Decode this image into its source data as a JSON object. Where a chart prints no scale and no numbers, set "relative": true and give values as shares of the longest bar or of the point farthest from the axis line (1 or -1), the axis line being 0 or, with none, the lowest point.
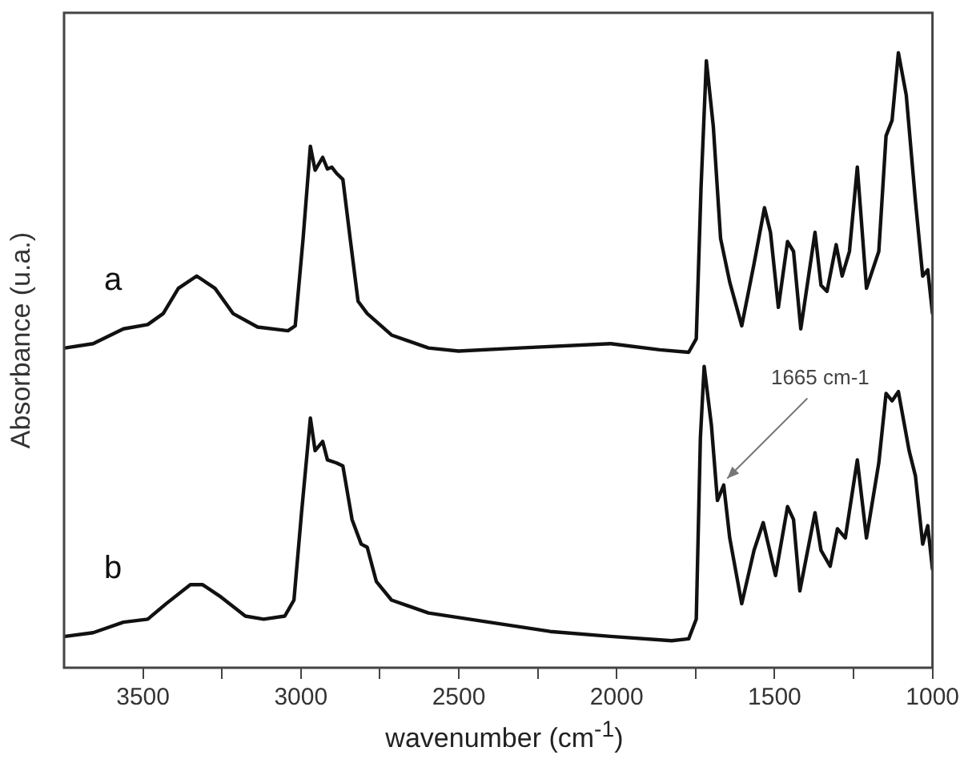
{
  "chart_data": {
    "type": "line",
    "relative": true,
    "xlabel": "wavenumber (cm$^{-1}$)",
    "ylabel": "Absorbance (u.a.)",
    "xlim": [
      3750,
      1000
    ],
    "xticks": [
      3500,
      {
        "value": 3250,
        "label": null
      },
      3000,
      {
        "value": 2750,
        "label": null
      },
      2500,
      {
        "value": 2250,
        "label": null
      },
      2000,
      {
        "value": 1750,
        "label": null
      },
      1500,
      {
        "value": 1250,
        "label": null
      },
      1000
    ],
    "grid": false,
    "legend": false,
    "marker": "none",
    "line_style": "solid",
    "annotations": [
      {
        "text": "1665 cm-1",
        "x": 1665,
        "y": 0.3
      }
    ],
    "series": [
      {
        "name": "a",
        "color": "#111111",
        "x": [
          3747,
          3658,
          3562,
          3485,
          3436,
          3388,
          3330,
          3272,
          3215,
          3137,
          3041,
          3018,
          2993,
          2970,
          2955,
          2931,
          2916,
          2902,
          2887,
          2867,
          2844,
          2819,
          2790,
          2713,
          2596,
          2501,
          2308,
          2019,
          1864,
          1772,
          1748,
          1733,
          1716,
          1694,
          1671,
          1642,
          1604,
          1565,
          1532,
          1513,
          1488,
          1459,
          1440,
          1417,
          1372,
          1353,
          1334,
          1305,
          1286,
          1263,
          1238,
          1209,
          1170,
          1147,
          1128,
          1108,
          1083,
          1054,
          1031,
          1015,
          1000
        ],
        "values": [
          0.52,
          0.527,
          0.551,
          0.558,
          0.576,
          0.617,
          0.637,
          0.617,
          0.576,
          0.554,
          0.548,
          0.556,
          0.698,
          0.848,
          0.809,
          0.83,
          0.811,
          0.814,
          0.804,
          0.794,
          0.698,
          0.596,
          0.576,
          0.541,
          0.52,
          0.515,
          0.52,
          0.527,
          0.517,
          0.513,
          0.535,
          0.779,
          0.987,
          0.88,
          0.698,
          0.627,
          0.556,
          0.657,
          0.748,
          0.708,
          0.586,
          0.693,
          0.677,
          0.551,
          0.708,
          0.622,
          0.612,
          0.688,
          0.637,
          0.677,
          0.814,
          0.617,
          0.677,
          0.865,
          0.89,
          1.0,
          0.931,
          0.759,
          0.637,
          0.647,
          0.576
        ]
      },
      {
        "name": "b",
        "color": "#111111",
        "x": [
          3747,
          3658,
          3562,
          3485,
          3427,
          3350,
          3311,
          3253,
          3176,
          3118,
          3051,
          3022,
          2998,
          2970,
          2955,
          2931,
          2916,
          2887,
          2867,
          2838,
          2809,
          2790,
          2761,
          2713,
          2596,
          2404,
          2211,
          2019,
          1826,
          1772,
          1748,
          1735,
          1723,
          1700,
          1681,
          1661,
          1642,
          1604,
          1565,
          1536,
          1497,
          1459,
          1440,
          1420,
          1372,
          1353,
          1324,
          1301,
          1276,
          1238,
          1209,
          1170,
          1147,
          1128,
          1108,
          1074,
          1054,
          1031,
          1015,
          1000
        ],
        "values": [
          0.051,
          0.057,
          0.074,
          0.079,
          0.104,
          0.135,
          0.135,
          0.115,
          0.084,
          0.079,
          0.084,
          0.11,
          0.252,
          0.406,
          0.353,
          0.368,
          0.338,
          0.333,
          0.328,
          0.241,
          0.201,
          0.196,
          0.14,
          0.11,
          0.089,
          0.074,
          0.059,
          0.051,
          0.044,
          0.047,
          0.079,
          0.373,
          0.49,
          0.394,
          0.272,
          0.297,
          0.211,
          0.104,
          0.191,
          0.236,
          0.15,
          0.262,
          0.241,
          0.125,
          0.252,
          0.191,
          0.165,
          0.226,
          0.211,
          0.338,
          0.211,
          0.333,
          0.446,
          0.434,
          0.449,
          0.353,
          0.312,
          0.201,
          0.231,
          0.16
        ]
      }
    ]
  }
}
